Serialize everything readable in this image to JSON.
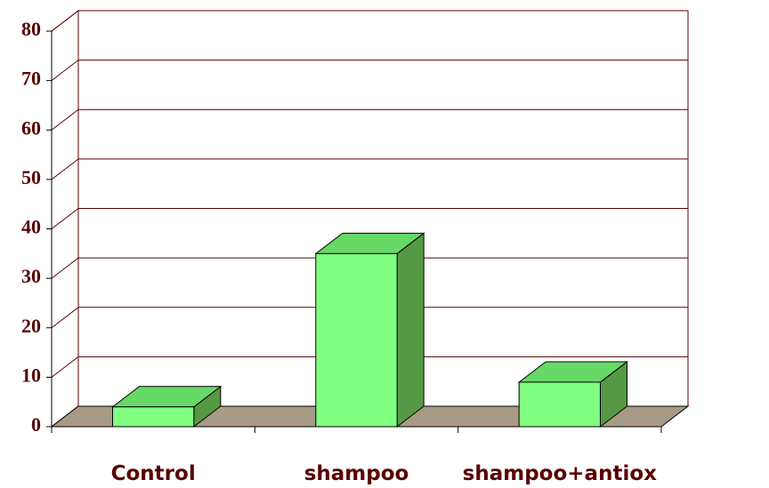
{
  "chart_data": {
    "type": "bar3d",
    "categories": [
      "Control",
      "shampoo",
      "shampoo+antiox"
    ],
    "values": [
      4,
      35,
      9
    ],
    "color": "#80ff80",
    "top_color": "#66d966",
    "side_color": "#559944",
    "floor_color": "#a89b85",
    "ylim": [
      0,
      80
    ],
    "yticks": [
      0,
      10,
      20,
      30,
      40,
      50,
      60,
      70,
      80
    ],
    "grid": true
  }
}
